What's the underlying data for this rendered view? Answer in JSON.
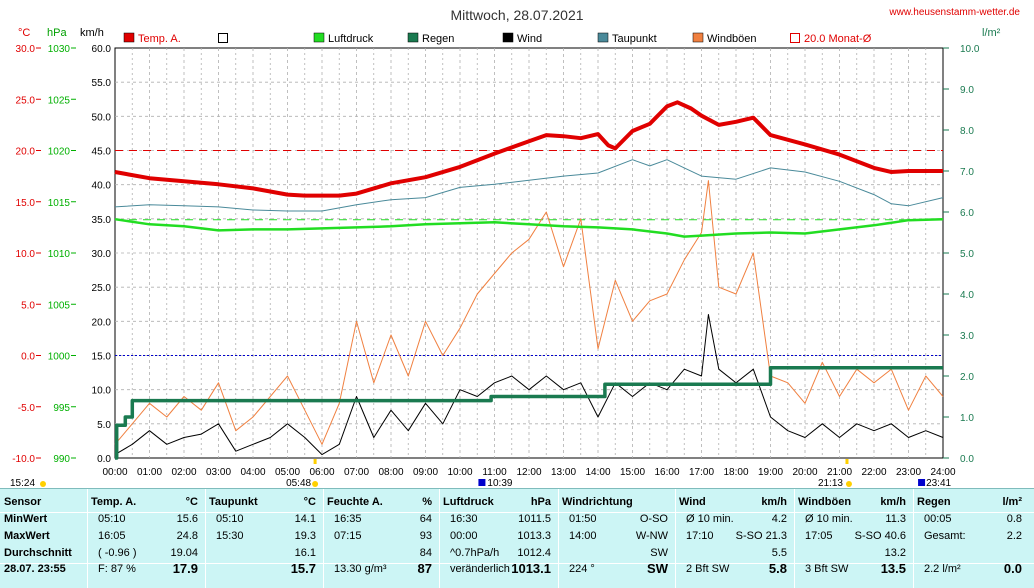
{
  "chart_data": {
    "type": "line",
    "title": "Mittwoch, 28.07.2021",
    "website": "www.heusenstamm-wetter.de",
    "units": {
      "temp": "°C",
      "pressure": "hPa",
      "wind": "km/h",
      "rain": "l/m²"
    },
    "axes": {
      "temp": {
        "min": -10,
        "max": 30,
        "ticks": [
          "30.0",
          "25.0",
          "20.0",
          "15.0",
          "10.0",
          "5.0",
          "0.0",
          "-5.0",
          "-10.0"
        ],
        "color": "#e00000"
      },
      "pressure": {
        "min": 990,
        "max": 1030,
        "ticks": [
          "1030",
          "1025",
          "1020",
          "1015",
          "1010",
          "1005",
          "1000",
          "995",
          "990"
        ],
        "color": "#00b000"
      },
      "wind": {
        "min": 0,
        "max": 60,
        "ticks": [
          "60.0",
          "55.0",
          "50.0",
          "45.0",
          "40.0",
          "35.0",
          "30.0",
          "25.0",
          "20.0",
          "15.0",
          "10.0",
          "5.0",
          "0.0"
        ],
        "color": "#000000"
      },
      "rain": {
        "min": 0,
        "max": 10,
        "ticks": [
          "10.0",
          "9.0",
          "8.0",
          "7.0",
          "6.0",
          "5.0",
          "4.0",
          "3.0",
          "2.0",
          "1.0",
          "0.0"
        ],
        "color": "#1a7a50"
      }
    },
    "x_ticks": [
      "00:00",
      "01:00",
      "02:00",
      "03:00",
      "04:00",
      "05:00",
      "06:00",
      "07:00",
      "08:00",
      "09:00",
      "10:00",
      "11:00",
      "12:00",
      "13:00",
      "14:00",
      "15:00",
      "16:00",
      "17:00",
      "18:00",
      "19:00",
      "20:00",
      "21:00",
      "22:00",
      "23:00",
      "24:00"
    ],
    "x_markers": {
      "sunrise": "05:48",
      "sunset": "21:13",
      "left": "15:24",
      "moon1": "10:39",
      "moon2": "23:41"
    },
    "legend": [
      {
        "label": "Temp. A.",
        "color": "#e00000",
        "style": "fill"
      },
      {
        "label": "",
        "color": "#ffffff",
        "style": "box"
      },
      {
        "label": "Luftdruck",
        "color": "#22dd22",
        "style": "fill"
      },
      {
        "label": "Regen",
        "color": "#1a7a50",
        "style": "fill"
      },
      {
        "label": "Wind",
        "color": "#000000",
        "style": "fill"
      },
      {
        "label": "Taupunkt",
        "color": "#4a8a9a",
        "style": "fill"
      },
      {
        "label": "Windböen",
        "color": "#f08040",
        "style": "fill"
      },
      {
        "label": "20.0 Monat-Ø",
        "color": "#e00000",
        "style": "box"
      }
    ],
    "reference_lines": {
      "monthly_avg_temp": 20.0,
      "pressure_ref": 1013.25,
      "zero_temp": 0.0
    },
    "series": [
      {
        "name": "Temp. A.",
        "axis": "temp",
        "color": "#e00000",
        "x": [
          0,
          1,
          2,
          3,
          4,
          5,
          5.5,
          6,
          6.5,
          7,
          8,
          9,
          10,
          11,
          12,
          12.5,
          13,
          13.5,
          14,
          14.3,
          14.5,
          15,
          15.5,
          16,
          16.3,
          16.7,
          17,
          17.5,
          18,
          18.5,
          19,
          20,
          21,
          22,
          22.5,
          23,
          24
        ],
        "y": [
          17.9,
          17.3,
          17.0,
          16.7,
          16.3,
          15.7,
          15.6,
          15.6,
          15.6,
          15.8,
          16.8,
          17.4,
          18.4,
          19.7,
          20.9,
          21.5,
          21.4,
          21.2,
          21.6,
          20.5,
          20.2,
          21.9,
          22.6,
          24.3,
          24.7,
          24.1,
          23.4,
          22.5,
          22.8,
          23.2,
          21.5,
          20.6,
          19.6,
          18.3,
          17.9,
          18.0,
          18.0
        ]
      },
      {
        "name": "Taupunkt",
        "axis": "temp",
        "color": "#4a8a9a",
        "x": [
          0,
          1,
          2,
          3,
          4,
          5,
          6,
          7,
          8,
          9,
          10,
          11,
          12,
          13,
          14,
          15,
          15.5,
          16,
          16.5,
          17,
          18,
          19,
          20,
          21,
          22,
          22.5,
          23,
          24
        ],
        "y": [
          14.5,
          14.7,
          14.6,
          14.5,
          14.2,
          14.1,
          14.1,
          14.7,
          15.2,
          15.4,
          16.4,
          16.7,
          17.1,
          17.5,
          17.8,
          19.1,
          18.5,
          19.1,
          18.3,
          17.5,
          17.2,
          18.3,
          17.9,
          17.0,
          15.7,
          14.8,
          14.6,
          15.4
        ]
      },
      {
        "name": "Luftdruck",
        "axis": "pressure",
        "color": "#22dd22",
        "x": [
          0,
          1,
          2,
          3,
          4,
          5,
          6,
          7,
          8,
          9,
          10,
          11,
          12,
          13,
          14,
          15,
          16,
          16.5,
          17,
          18,
          19,
          20,
          21,
          22,
          23,
          24
        ],
        "y": [
          1013.3,
          1012.8,
          1012.6,
          1012.2,
          1012.3,
          1012.3,
          1012.4,
          1012.5,
          1012.6,
          1012.8,
          1012.9,
          1013.0,
          1012.8,
          1012.6,
          1012.5,
          1012.3,
          1011.9,
          1011.6,
          1011.7,
          1011.9,
          1012.0,
          1011.9,
          1012.3,
          1012.7,
          1013.2,
          1013.3
        ]
      },
      {
        "name": "Regen",
        "axis": "rain",
        "color": "#1a7a50",
        "step": true,
        "x": [
          0,
          0.05,
          0.3,
          0.5,
          10.4,
          10.9,
          14.0,
          14.2,
          17.1,
          19.0,
          24
        ],
        "y": [
          0,
          0.8,
          1.0,
          1.4,
          1.4,
          1.5,
          1.5,
          1.8,
          1.8,
          2.2,
          2.2
        ]
      },
      {
        "name": "Wind",
        "axis": "wind",
        "color": "#000000",
        "x": [
          0,
          0.5,
          1,
          1.5,
          2,
          2.5,
          3,
          3.5,
          4,
          4.5,
          5,
          5.5,
          6,
          6.5,
          7,
          7.5,
          8,
          8.5,
          9,
          9.5,
          10,
          10.5,
          11,
          11.5,
          12,
          12.5,
          13,
          13.5,
          14,
          14.5,
          15,
          15.5,
          16,
          16.5,
          17,
          17.2,
          17.5,
          18,
          18.5,
          19,
          19.5,
          20,
          20.5,
          21,
          21.5,
          22,
          22.5,
          23,
          23.5,
          24
        ],
        "y": [
          0.5,
          2,
          4,
          2,
          3,
          3.5,
          5,
          1,
          2,
          3,
          5,
          3,
          0.5,
          2,
          9,
          3,
          7,
          4,
          8,
          5,
          10,
          9,
          11,
          12,
          10,
          12,
          10,
          11,
          6,
          11,
          9,
          11,
          10,
          13,
          12,
          21,
          13,
          11,
          13,
          6,
          4,
          3,
          5,
          3,
          5,
          4,
          5,
          3,
          4,
          3
        ]
      },
      {
        "name": "Windböen",
        "axis": "wind",
        "color": "#f08040",
        "x": [
          0,
          0.5,
          1,
          1.5,
          2,
          2.5,
          3,
          3.5,
          4,
          4.5,
          5,
          5.5,
          6,
          6.5,
          7,
          7.5,
          8,
          8.5,
          9,
          9.5,
          10,
          10.5,
          11,
          11.5,
          12,
          12.5,
          13,
          13.5,
          14,
          14.5,
          15,
          15.5,
          16,
          16.5,
          17,
          17.2,
          17.5,
          18,
          18.5,
          19,
          19.5,
          20,
          20.5,
          21,
          21.5,
          22,
          22.5,
          23,
          23.5,
          24
        ],
        "y": [
          2,
          5,
          8,
          6,
          9,
          7,
          11,
          4,
          6,
          9,
          12,
          7,
          2,
          8,
          20,
          11,
          18,
          12,
          20,
          15,
          19,
          24,
          27,
          30,
          32,
          36,
          28,
          35,
          16,
          26,
          20,
          23,
          24,
          29,
          33,
          40.6,
          25,
          24,
          30,
          12,
          11,
          8,
          14,
          9,
          13,
          11,
          13,
          7,
          12,
          9
        ]
      }
    ]
  },
  "summary": {
    "columns": [
      {
        "header": "Sensor",
        "header_unit": "",
        "rows": [
          [
            "MinWert",
            ""
          ],
          [
            "MaxWert",
            ""
          ],
          [
            "Durchschnitt",
            ""
          ]
        ],
        "footer": [
          "28.07.  23:55",
          ""
        ]
      },
      {
        "header": "Temp. A.",
        "header_unit": "°C",
        "rows": [
          [
            "05:10",
            "15.6"
          ],
          [
            "16:05",
            "24.8"
          ],
          [
            "( -0.96 )",
            "19.04"
          ]
        ],
        "footer": [
          "F: 87 %",
          "17.9"
        ]
      },
      {
        "header": "Taupunkt",
        "header_unit": "°C",
        "rows": [
          [
            "05:10",
            "14.1"
          ],
          [
            "15:30",
            "19.3"
          ],
          [
            "",
            "16.1"
          ]
        ],
        "footer": [
          "",
          "15.7"
        ]
      },
      {
        "header": "Feuchte A.",
        "header_unit": "%",
        "rows": [
          [
            "16:35",
            "64"
          ],
          [
            "07:15",
            "93"
          ],
          [
            "",
            "84"
          ]
        ],
        "footer": [
          "13.30 g/m³",
          "87"
        ]
      },
      {
        "header": "Luftdruck",
        "header_unit": "hPa",
        "rows": [
          [
            "16:30",
            "1011.5"
          ],
          [
            "00:00",
            "1013.3"
          ],
          [
            "^0.7hPa/h",
            "1012.4"
          ]
        ],
        "footer": [
          "veränderlich",
          "1013.1"
        ]
      },
      {
        "header": "Windrichtung",
        "header_unit": "",
        "rows": [
          [
            "01:50",
            "O-SO"
          ],
          [
            "14:00",
            "W-NW"
          ],
          [
            "",
            "SW"
          ]
        ],
        "footer": [
          "224 °",
          "SW"
        ]
      },
      {
        "header": "Wind",
        "header_unit": "km/h",
        "rows": [
          [
            "Ø 10 min.",
            "4.2"
          ],
          [
            "17:10",
            "S-SO 21.3"
          ],
          [
            "",
            "5.5"
          ]
        ],
        "footer": [
          "2 Bft SW",
          "5.8"
        ]
      },
      {
        "header": "Windböen",
        "header_unit": "km/h",
        "rows": [
          [
            "Ø 10 min.",
            "11.3"
          ],
          [
            "17:05",
            "S-SO 40.6"
          ],
          [
            "",
            "13.2"
          ]
        ],
        "footer": [
          "3 Bft SW",
          "13.5"
        ]
      },
      {
        "header": "Regen",
        "header_unit": "l/m²",
        "rows": [
          [
            "00:05",
            "0.8"
          ],
          [
            "Gesamt:",
            "2.2"
          ],
          [
            "",
            ""
          ]
        ],
        "footer": [
          "2.2 l/m²",
          "0.0"
        ]
      }
    ]
  }
}
